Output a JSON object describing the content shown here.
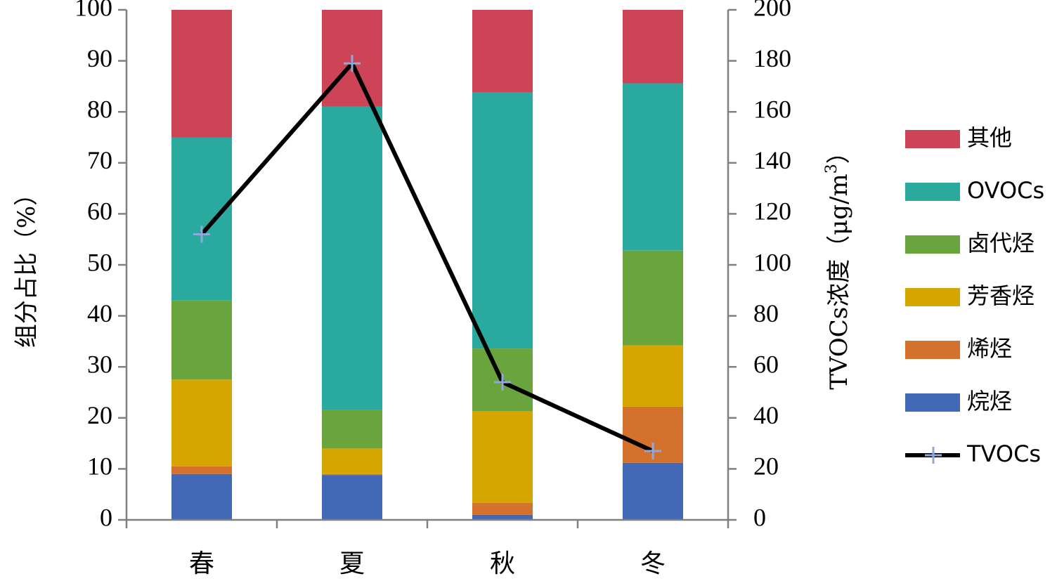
{
  "chart_data": {
    "type": "bar",
    "stacked": true,
    "categories": [
      "春",
      "夏",
      "秋",
      "冬"
    ],
    "series": [
      {
        "name": "烷烃",
        "color": "#4169B6",
        "values": [
          9.0,
          8.8,
          1.0,
          11.2
        ]
      },
      {
        "name": "烯烃",
        "color": "#D4712C",
        "values": [
          1.5,
          0.2,
          2.3,
          11.0
        ]
      },
      {
        "name": "芳香烃",
        "color": "#D6A500",
        "values": [
          17.0,
          5.0,
          18.0,
          12.0
        ]
      },
      {
        "name": "卤代烃",
        "color": "#69A43D",
        "values": [
          15.5,
          7.5,
          12.3,
          18.6
        ]
      },
      {
        "name": "OVOCs",
        "color": "#2AAA9E",
        "values": [
          32.0,
          59.5,
          50.2,
          32.8
        ]
      },
      {
        "name": "其他",
        "color": "#CC4455",
        "values": [
          25.0,
          19.0,
          16.2,
          14.4
        ]
      }
    ],
    "line_series": {
      "name": "TVOCs",
      "color": "#000000",
      "marker_color": "#8EA9DB",
      "values": [
        112,
        179,
        54,
        27
      ]
    },
    "ylabel": "组分占比（%）",
    "ylim": [
      0,
      100
    ],
    "yticks": [
      "0",
      "10",
      "20",
      "30",
      "40",
      "50",
      "60",
      "70",
      "80",
      "90",
      "100"
    ],
    "y2label_prefix": "TVOCs浓度（μg/m",
    "y2label_sup": "3",
    "y2label_suffix": "）",
    "y2lim": [
      0,
      200
    ],
    "y2ticks": [
      "0",
      "20",
      "40",
      "60",
      "80",
      "100",
      "120",
      "140",
      "160",
      "180",
      "200"
    ],
    "legend_order": [
      "其他",
      "OVOCs",
      "卤代烃",
      "芳香烃",
      "烯烃",
      "烷烃",
      "TVOCs"
    ],
    "legend_position": "right"
  }
}
